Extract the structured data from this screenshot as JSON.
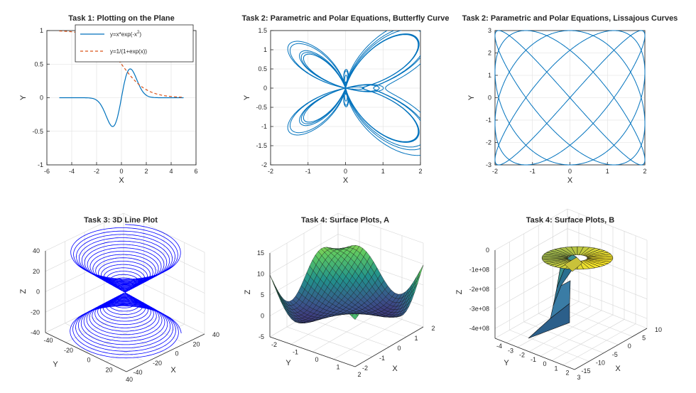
{
  "colors": {
    "line_blue": "#0072bd",
    "line_orange": "#d95319",
    "plot3d_blue": "#0000ff",
    "axis": "#262626",
    "grid": "#dedede"
  },
  "chart_data": [
    {
      "type": "line",
      "title": "Task 1: Plotting on the Plane",
      "xlabel": "X",
      "ylabel": "Y",
      "xlim": [
        -6,
        6
      ],
      "ylim": [
        -1,
        1
      ],
      "xticks": [
        "-6",
        "-4",
        "-2",
        "0",
        "2",
        "4",
        "6"
      ],
      "yticks": [
        "-1",
        "-0.5",
        "0",
        "0.5",
        "1"
      ],
      "grid": true,
      "legend": "top-center",
      "series": [
        {
          "name": "y=x*exp(-x^2)",
          "legend_main": "y=x*exp(-x",
          "legend_sup": "2",
          "legend_tail": ")",
          "style": "solid",
          "color": "#0072bd",
          "x": [
            -5,
            -3,
            -2.5,
            -2,
            -1.5,
            -1.2,
            -1,
            -0.8,
            -0.7071,
            -0.6,
            -0.4,
            -0.2,
            0,
            0.2,
            0.4,
            0.6,
            0.7071,
            0.8,
            1,
            1.2,
            1.5,
            2,
            2.5,
            3,
            5
          ],
          "y": [
            0,
            -0.0004,
            -0.0048,
            -0.0366,
            -0.1581,
            -0.2843,
            -0.3679,
            -0.4219,
            -0.4289,
            -0.4186,
            -0.3409,
            -0.1922,
            0,
            0.1922,
            0.3409,
            0.4186,
            0.4289,
            0.4219,
            0.3679,
            0.2843,
            0.1581,
            0.0366,
            0.0048,
            0.0004,
            0
          ]
        },
        {
          "name": "y=1/(1+exp(x))",
          "style": "dashed",
          "color": "#d95319",
          "x": [
            -5,
            -4,
            -3,
            -2,
            -1.5,
            -1,
            -0.5,
            0,
            0.5,
            1,
            1.5,
            2,
            3,
            4,
            5
          ],
          "y": [
            0.9933,
            0.982,
            0.9526,
            0.8808,
            0.8176,
            0.7311,
            0.6225,
            0.5,
            0.3775,
            0.2689,
            0.1824,
            0.1192,
            0.0474,
            0.018,
            0.0067
          ]
        }
      ]
    },
    {
      "type": "line",
      "title": "Task 2: Parametric and Polar Equations, Butterfly Curve",
      "xlabel": "X",
      "ylabel": "Y",
      "xlim": [
        -2,
        2
      ],
      "ylim": [
        -2,
        1.5
      ],
      "xticks": [
        "-2",
        "-1",
        "0",
        "1",
        "2"
      ],
      "yticks": [
        "-2",
        "-1.5",
        "-1",
        "-0.5",
        "0",
        "0.5",
        "1",
        "1.5"
      ],
      "grid": true,
      "curve": "polar r = exp(sin t) - 2cos(4t) + sin^5((2t - pi)/24), x = r·sin t, y = r·cos t, t in [0, 12·pi]"
    },
    {
      "type": "line",
      "title": "Task 2: Parametric and Polar Equations, Lissajous Curves",
      "xlabel": "X",
      "ylabel": "Y",
      "xlim": [
        -2,
        2
      ],
      "ylim": [
        -3,
        3
      ],
      "xticks": [
        "-2",
        "-1",
        "0",
        "1",
        "2"
      ],
      "yticks": [
        "-3",
        "-2",
        "-1",
        "0",
        "1",
        "2",
        "3"
      ],
      "grid": true,
      "curve": "x = 2 sin(4.3 t), y = 3 sin(5 t)"
    },
    {
      "type": "line",
      "title": "Task 3: 3D Line Plot",
      "xlabel": "X",
      "ylabel": "Y",
      "zlabel": "Z",
      "xlim": [
        -40,
        40
      ],
      "ylim": [
        -40,
        40
      ],
      "zlim": [
        -40,
        40
      ],
      "xticks": [
        "-40",
        "-20",
        "0",
        "20",
        "40"
      ],
      "yticks": [
        "-40",
        "-20",
        "0",
        "20",
        "40"
      ],
      "zticks": [
        "-40",
        "-20",
        "0",
        "20",
        "40"
      ],
      "grid": true,
      "curve": "double cone spiral: x = t·cos t, y = t·sin t, z = t, t in [-40, 40]"
    },
    {
      "type": "heatmap",
      "title": "Task 4: Surface Plots, A",
      "xlabel": "X",
      "ylabel": "Y",
      "zlabel": "Z",
      "xlim": [
        -2,
        2
      ],
      "ylim": [
        -2,
        2
      ],
      "zlim": [
        -5,
        15
      ],
      "xticks": [
        "-2",
        "-1",
        "0",
        "1",
        "2"
      ],
      "yticks": [
        "-2",
        "-1",
        "0",
        "1",
        "2"
      ],
      "zticks": [
        "-5",
        "0",
        "5",
        "10",
        "15"
      ],
      "grid": true,
      "surface": "z = x^2 + y^2 - 4 sin(x·y)"
    },
    {
      "type": "heatmap",
      "title": "Task 4: Surface Plots, B",
      "xlabel": "X",
      "ylabel": "Y",
      "zlabel": "Z",
      "xlim": [
        -4,
        3
      ],
      "ylim": [
        -15,
        10
      ],
      "zlim": [
        -450000000,
        0
      ],
      "xticks": [
        "-4",
        "-3",
        "-2",
        "-1",
        "0",
        "1",
        "2",
        "3"
      ],
      "yticks": [
        "-15",
        "-10",
        "-5",
        "0",
        "5",
        "10"
      ],
      "zticks": [
        "-4e+08",
        "-3e+08",
        "-2e+08",
        "-1e+08",
        "0"
      ],
      "grid": true,
      "surface": "helicoid ribbon descending from z = 0 to z ≈ -4.2e+08"
    }
  ]
}
